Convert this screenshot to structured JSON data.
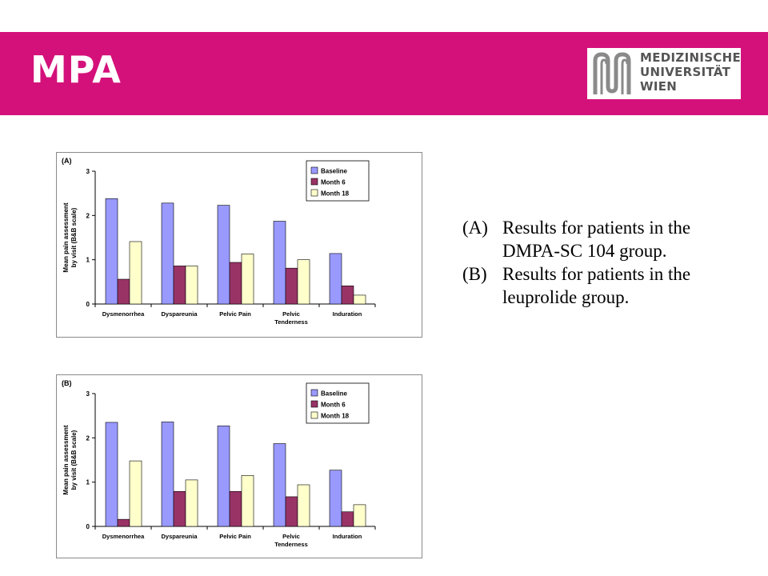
{
  "header": {
    "title": "MPA",
    "bg_color": "#d4117a",
    "logo_lines": [
      "MEDIZINISCHE",
      "UNIVERSITÄT",
      "WIEN"
    ]
  },
  "captions": [
    {
      "tag": "(A)",
      "text": "Results for patients in the DMPA-SC 104 group."
    },
    {
      "tag": "(B)",
      "text": "Results for patients in the leuprolide group."
    }
  ],
  "chart_data": [
    {
      "type": "bar",
      "panel_label": "(A)",
      "ylabel": "Mean pain assessment by visit (B&B scale)",
      "xlabel": "",
      "ylim": [
        0,
        3
      ],
      "yticks": [
        0,
        1,
        2,
        3
      ],
      "categories": [
        "Dysmenorrhea",
        "Dyspareunia",
        "Pelvic Pain",
        "Pelvic Tenderness",
        "Induration"
      ],
      "category_labels": [
        [
          "Dysmenorrhea"
        ],
        [
          "Dyspareunia"
        ],
        [
          "Pelvic Pain"
        ],
        [
          "Pelvic",
          "Tenderness"
        ],
        [
          "Induration"
        ]
      ],
      "series": [
        {
          "name": "Baseline",
          "color": "#9999ff",
          "values": [
            2.38,
            2.28,
            2.23,
            1.87,
            1.14
          ]
        },
        {
          "name": "Month 6",
          "color": "#993366",
          "values": [
            0.56,
            0.86,
            0.94,
            0.81,
            0.41
          ]
        },
        {
          "name": "Month 18",
          "color": "#ffffcc",
          "values": [
            1.41,
            0.86,
            1.13,
            1.0,
            0.2
          ]
        }
      ],
      "grid": false,
      "legend_position": "top-right"
    },
    {
      "type": "bar",
      "panel_label": "(B)",
      "ylabel": "Mean pain assessment by visit (B&B scale)",
      "xlabel": "",
      "ylim": [
        0,
        3
      ],
      "yticks": [
        0,
        1,
        2,
        3
      ],
      "categories": [
        "Dysmenorrhea",
        "Dyspareunia",
        "Pelvic Pain",
        "Pelvic Tenderness",
        "Induration"
      ],
      "category_labels": [
        [
          "Dysmenorrhea"
        ],
        [
          "Dyspareunia"
        ],
        [
          "Pelvic Pain"
        ],
        [
          "Pelvic",
          "Tenderness"
        ],
        [
          "Induration"
        ]
      ],
      "series": [
        {
          "name": "Baseline",
          "color": "#9999ff",
          "values": [
            2.35,
            2.36,
            2.27,
            1.87,
            1.27
          ]
        },
        {
          "name": "Month 6",
          "color": "#993366",
          "values": [
            0.16,
            0.79,
            0.79,
            0.67,
            0.33
          ]
        },
        {
          "name": "Month 18",
          "color": "#ffffcc",
          "values": [
            1.48,
            1.05,
            1.15,
            0.94,
            0.49
          ]
        }
      ],
      "grid": false,
      "legend_position": "top-right"
    }
  ]
}
